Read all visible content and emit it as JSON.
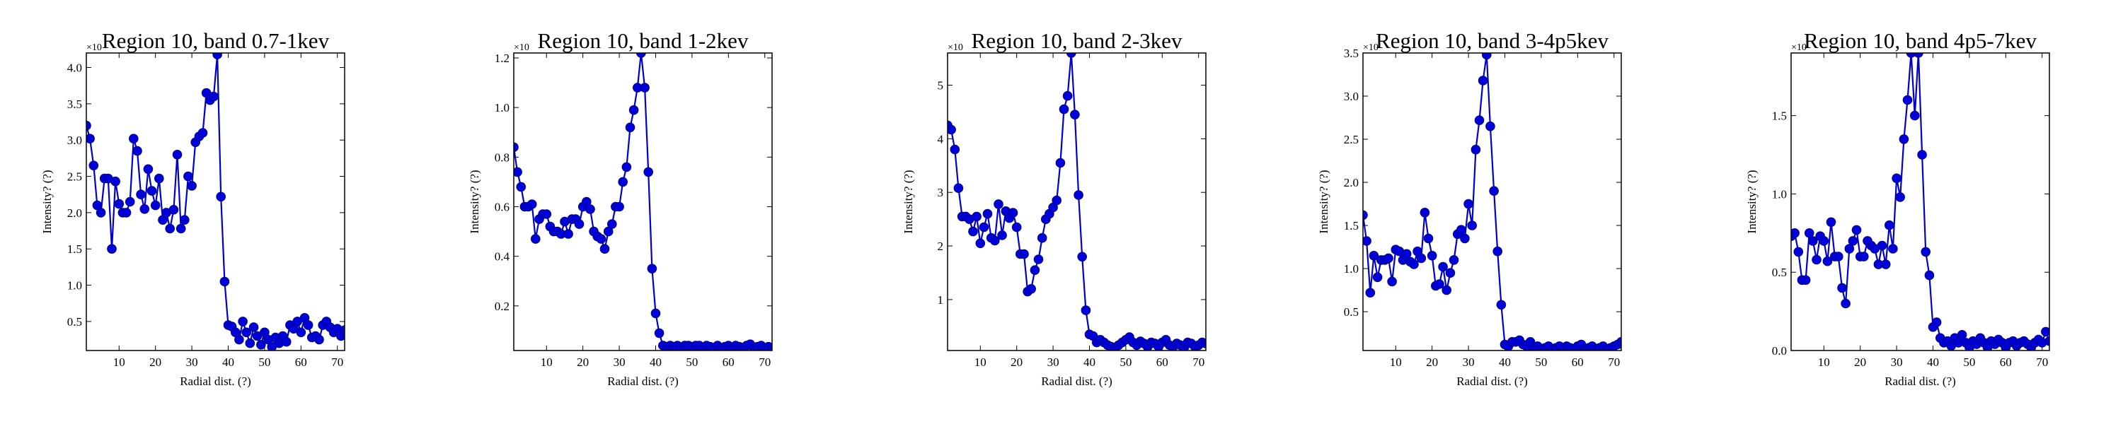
{
  "figure": {
    "series_color": "#0000cc",
    "marker_fill": "#0000dd",
    "marker_edge": "#00008b"
  },
  "chart_data": [
    {
      "type": "line",
      "title": "Region 10, band 0.7-1kev",
      "xlabel": "Radial dist. (?)",
      "ylabel": "Intensity? (?)",
      "offset_label": "×10",
      "xlim": [
        1,
        72
      ],
      "ylim": [
        0.1,
        4.2
      ],
      "xticks": [
        10,
        20,
        30,
        40,
        50,
        60,
        70
      ],
      "yticks": [
        0.5,
        1.0,
        1.5,
        2.0,
        2.5,
        3.0,
        3.5,
        4.0
      ],
      "ytick_labels": [
        "0.5",
        "1.0",
        "1.5",
        "2.0",
        "2.5",
        "3.0",
        "3.5",
        "4.0"
      ],
      "grid": false,
      "x": [
        1,
        2,
        3,
        4,
        5,
        6,
        7,
        8,
        9,
        10,
        11,
        12,
        13,
        14,
        15,
        16,
        17,
        18,
        19,
        20,
        21,
        22,
        23,
        24,
        25,
        26,
        27,
        28,
        29,
        30,
        31,
        32,
        33,
        34,
        35,
        36,
        37,
        38,
        39,
        40,
        41,
        42,
        43,
        44,
        45,
        46,
        47,
        48,
        49,
        50,
        51,
        52,
        53,
        54,
        55,
        56,
        57,
        58,
        59,
        60,
        61,
        62,
        63,
        64,
        65,
        66,
        67,
        68,
        69,
        70,
        71,
        72
      ],
      "y": [
        3.2,
        3.02,
        2.65,
        2.1,
        2.0,
        2.47,
        2.47,
        1.5,
        2.43,
        2.12,
        2.0,
        2.0,
        2.15,
        3.02,
        2.85,
        2.25,
        2.05,
        2.6,
        2.3,
        2.1,
        2.47,
        1.9,
        2.0,
        1.78,
        2.04,
        2.8,
        1.78,
        1.9,
        2.5,
        2.37,
        2.97,
        3.05,
        3.1,
        3.65,
        3.55,
        3.6,
        4.18,
        2.22,
        1.05,
        0.45,
        0.43,
        0.35,
        0.25,
        0.5,
        0.35,
        0.2,
        0.42,
        0.3,
        0.18,
        0.35,
        0.25,
        0.15,
        0.28,
        0.2,
        0.3,
        0.22,
        0.45,
        0.4,
        0.5,
        0.35,
        0.55,
        0.45,
        0.28,
        0.3,
        0.25,
        0.45,
        0.5,
        0.42,
        0.35,
        0.4,
        0.3,
        0.38
      ]
    },
    {
      "type": "line",
      "title": "Region 10, band 1-2kev",
      "xlabel": "Radial dist. (?)",
      "ylabel": "Intensity? (?)",
      "offset_label": "×10",
      "xlim": [
        1,
        72
      ],
      "ylim": [
        0.02,
        1.22
      ],
      "xticks": [
        10,
        20,
        30,
        40,
        50,
        60,
        70
      ],
      "yticks": [
        0.2,
        0.4,
        0.6,
        0.8,
        1.0,
        1.2
      ],
      "ytick_labels": [
        "0.2",
        "0.4",
        "0.6",
        "0.8",
        "1.0",
        "1.2"
      ],
      "grid": false,
      "x": [
        1,
        2,
        3,
        4,
        5,
        6,
        7,
        8,
        9,
        10,
        11,
        12,
        13,
        14,
        15,
        16,
        17,
        18,
        19,
        20,
        21,
        22,
        23,
        24,
        25,
        26,
        27,
        28,
        29,
        30,
        31,
        32,
        33,
        34,
        35,
        36,
        37,
        38,
        39,
        40,
        41,
        42,
        43,
        44,
        45,
        46,
        47,
        48,
        49,
        50,
        51,
        52,
        53,
        54,
        55,
        56,
        57,
        58,
        59,
        60,
        61,
        62,
        63,
        64,
        65,
        66,
        67,
        68,
        69,
        70,
        71,
        72
      ],
      "y": [
        0.84,
        0.74,
        0.68,
        0.6,
        0.6,
        0.61,
        0.47,
        0.55,
        0.57,
        0.57,
        0.52,
        0.5,
        0.5,
        0.49,
        0.54,
        0.49,
        0.55,
        0.55,
        0.53,
        0.6,
        0.62,
        0.59,
        0.5,
        0.48,
        0.47,
        0.43,
        0.5,
        0.53,
        0.6,
        0.6,
        0.7,
        0.76,
        0.92,
        0.99,
        1.08,
        1.22,
        1.08,
        0.74,
        0.35,
        0.17,
        0.09,
        0.04,
        0.035,
        0.04,
        0.035,
        0.04,
        0.03,
        0.04,
        0.04,
        0.035,
        0.04,
        0.04,
        0.03,
        0.04,
        0.035,
        0.03,
        0.04,
        0.03,
        0.035,
        0.04,
        0.03,
        0.04,
        0.035,
        0.03,
        0.04,
        0.045,
        0.03,
        0.035,
        0.04,
        0.03,
        0.035,
        0.03
      ]
    },
    {
      "type": "line",
      "title": "Region 10, band 2-3kev",
      "xlabel": "Radial dist. (?)",
      "ylabel": "Intensity? (?)",
      "offset_label": "×10",
      "xlim": [
        1,
        72
      ],
      "ylim": [
        0.05,
        5.6
      ],
      "xticks": [
        10,
        20,
        30,
        40,
        50,
        60,
        70
      ],
      "yticks": [
        1,
        2,
        3,
        4,
        5
      ],
      "ytick_labels": [
        "1",
        "2",
        "3",
        "4",
        "5"
      ],
      "grid": false,
      "x": [
        1,
        2,
        3,
        4,
        5,
        6,
        7,
        8,
        9,
        10,
        11,
        12,
        13,
        14,
        15,
        16,
        17,
        18,
        19,
        20,
        21,
        22,
        23,
        24,
        25,
        26,
        27,
        28,
        29,
        30,
        31,
        32,
        33,
        34,
        35,
        36,
        37,
        38,
        39,
        40,
        41,
        42,
        43,
        44,
        45,
        46,
        47,
        48,
        49,
        50,
        51,
        52,
        53,
        54,
        55,
        56,
        57,
        58,
        59,
        60,
        61,
        62,
        63,
        64,
        65,
        66,
        67,
        68,
        69,
        70,
        71,
        72
      ],
      "y": [
        4.25,
        4.17,
        3.8,
        3.08,
        2.55,
        2.55,
        2.5,
        2.27,
        2.55,
        2.05,
        2.35,
        2.6,
        2.15,
        2.1,
        2.78,
        2.2,
        2.65,
        2.52,
        2.62,
        2.35,
        1.85,
        1.85,
        1.15,
        1.2,
        1.55,
        1.75,
        2.15,
        2.5,
        2.6,
        2.72,
        2.85,
        3.55,
        4.55,
        4.8,
        5.6,
        4.45,
        2.95,
        1.8,
        0.8,
        0.35,
        0.32,
        0.2,
        0.25,
        0.2,
        0.15,
        0.12,
        0.1,
        0.15,
        0.2,
        0.25,
        0.3,
        0.2,
        0.15,
        0.22,
        0.18,
        0.12,
        0.2,
        0.18,
        0.12,
        0.2,
        0.25,
        0.15,
        0.12,
        0.18,
        0.15,
        0.1,
        0.2,
        0.18,
        0.12,
        0.15,
        0.2,
        0.18
      ]
    },
    {
      "type": "line",
      "title": "Region 10, band 3-4p5kev",
      "xlabel": "Radial dist. (?)",
      "ylabel": "Intensity? (?)",
      "offset_label": "×10",
      "xlim": [
        1,
        72
      ],
      "ylim": [
        0.05,
        3.5
      ],
      "xticks": [
        10,
        20,
        30,
        40,
        50,
        60,
        70
      ],
      "yticks": [
        0.5,
        1.0,
        1.5,
        2.0,
        2.5,
        3.0,
        3.5
      ],
      "ytick_labels": [
        "0.5",
        "1.0",
        "1.5",
        "2.0",
        "2.5",
        "3.0",
        "3.5"
      ],
      "grid": false,
      "x": [
        1,
        2,
        3,
        4,
        5,
        6,
        7,
        8,
        9,
        10,
        11,
        12,
        13,
        14,
        15,
        16,
        17,
        18,
        19,
        20,
        21,
        22,
        23,
        24,
        25,
        26,
        27,
        28,
        29,
        30,
        31,
        32,
        33,
        34,
        35,
        36,
        37,
        38,
        39,
        40,
        41,
        42,
        43,
        44,
        45,
        46,
        47,
        48,
        49,
        50,
        51,
        52,
        53,
        54,
        55,
        56,
        57,
        58,
        59,
        60,
        61,
        62,
        63,
        64,
        65,
        66,
        67,
        68,
        69,
        70,
        71,
        72
      ],
      "y": [
        1.62,
        1.32,
        0.72,
        1.15,
        0.9,
        1.1,
        1.1,
        1.12,
        0.85,
        1.22,
        1.2,
        1.1,
        1.17,
        1.08,
        1.05,
        1.2,
        1.12,
        1.65,
        1.35,
        1.15,
        0.8,
        0.82,
        1.02,
        0.75,
        0.95,
        1.1,
        1.4,
        1.45,
        1.35,
        1.75,
        1.5,
        2.38,
        2.72,
        3.18,
        3.48,
        2.65,
        1.9,
        1.2,
        0.58,
        0.12,
        0.1,
        0.15,
        0.15,
        0.17,
        0.12,
        0.1,
        0.15,
        0.08,
        0.1,
        0.05,
        0.08,
        0.1,
        0.05,
        0.08,
        0.1,
        0.05,
        0.1,
        0.08,
        0.05,
        0.1,
        0.12,
        0.05,
        0.08,
        0.1,
        0.05,
        0.08,
        0.1,
        0.05,
        0.08,
        0.1,
        0.12,
        0.15
      ]
    },
    {
      "type": "line",
      "title": "Region 10, band 4p5-7kev",
      "xlabel": "Radial dist. (?)",
      "ylabel": "Intensity? (?)",
      "offset_label": "×10",
      "xlim": [
        1,
        72
      ],
      "ylim": [
        0.0,
        1.9
      ],
      "xticks": [
        10,
        20,
        30,
        40,
        50,
        60,
        70
      ],
      "yticks": [
        0.0,
        0.5,
        1.0,
        1.5
      ],
      "ytick_labels": [
        "0.0",
        "0.5",
        "1.0",
        "1.5"
      ],
      "grid": false,
      "x": [
        1,
        2,
        3,
        4,
        5,
        6,
        7,
        8,
        9,
        10,
        11,
        12,
        13,
        14,
        15,
        16,
        17,
        18,
        19,
        20,
        21,
        22,
        23,
        24,
        25,
        26,
        27,
        28,
        29,
        30,
        31,
        32,
        33,
        34,
        35,
        36,
        37,
        38,
        39,
        40,
        41,
        42,
        43,
        44,
        45,
        46,
        47,
        48,
        49,
        50,
        51,
        52,
        53,
        54,
        55,
        56,
        57,
        58,
        59,
        60,
        61,
        62,
        63,
        64,
        65,
        66,
        67,
        68,
        69,
        70,
        71,
        72
      ],
      "y": [
        0.73,
        0.75,
        0.63,
        0.45,
        0.45,
        0.75,
        0.7,
        0.58,
        0.73,
        0.7,
        0.57,
        0.82,
        0.6,
        0.6,
        0.4,
        0.3,
        0.65,
        0.7,
        0.77,
        0.6,
        0.6,
        0.7,
        0.67,
        0.65,
        0.55,
        0.67,
        0.55,
        0.8,
        0.65,
        1.1,
        0.98,
        1.35,
        1.6,
        1.9,
        1.5,
        1.9,
        1.25,
        0.63,
        0.48,
        0.15,
        0.18,
        0.08,
        0.05,
        0.06,
        0.03,
        0.08,
        0.05,
        0.1,
        0.05,
        0.02,
        0.06,
        0.04,
        0.08,
        0.05,
        0.02,
        0.06,
        0.04,
        0.07,
        0.05,
        0.02,
        0.05,
        0.06,
        0.03,
        0.05,
        0.06,
        0.04,
        0.02,
        0.05,
        0.07,
        0.05,
        0.12,
        0.06
      ]
    }
  ]
}
